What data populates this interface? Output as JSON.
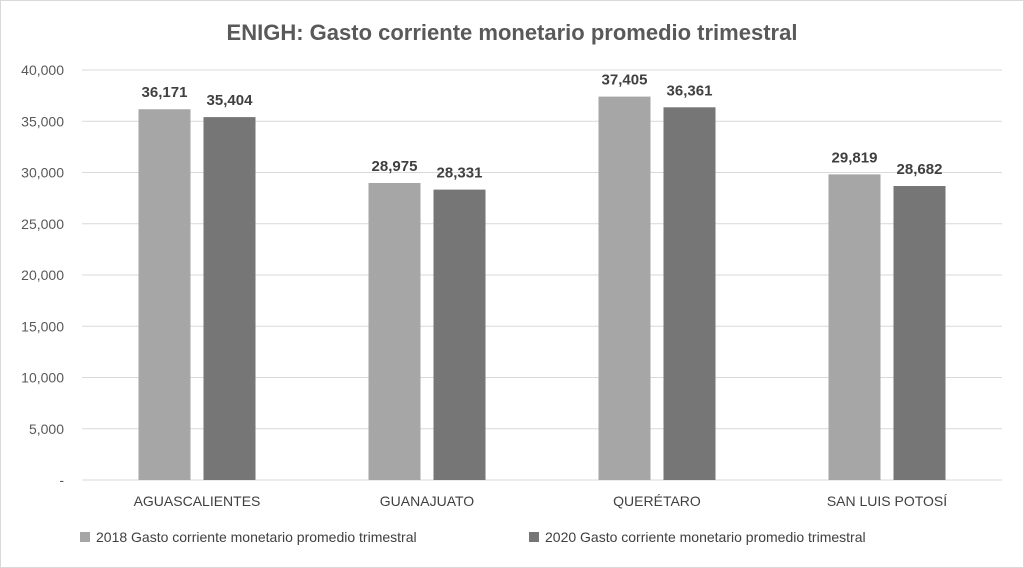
{
  "chart_data": {
    "type": "bar",
    "title": "ENIGH: Gasto corriente monetario promedio trimestral",
    "xlabel": "",
    "ylabel": "",
    "categories": [
      "AGUASCALIENTES",
      "GUANAJUATO",
      "QUERÉTARO",
      "SAN LUIS POTOSÍ"
    ],
    "series": [
      {
        "name": "2018 Gasto corriente monetario promedio trimestral",
        "values": [
          36171,
          28975,
          37405,
          29819
        ],
        "labels": [
          "36,171",
          "28,975",
          "37,405",
          "29,819"
        ],
        "color": "#a6a6a6"
      },
      {
        "name": "2020 Gasto corriente monetario promedio trimestral",
        "values": [
          35404,
          28331,
          36361,
          28682
        ],
        "labels": [
          "35,404",
          "28,331",
          "36,361",
          "28,682"
        ],
        "color": "#767676"
      }
    ],
    "ylim": [
      0,
      40000
    ],
    "yticks": [
      0,
      5000,
      10000,
      15000,
      20000,
      25000,
      30000,
      35000,
      40000
    ],
    "ytick_labels": [
      "-",
      "5,000",
      "10,000",
      "15,000",
      "20,000",
      "25,000",
      "30,000",
      "35,000",
      "40,000"
    ],
    "grid": true,
    "legend_position": "bottom"
  }
}
